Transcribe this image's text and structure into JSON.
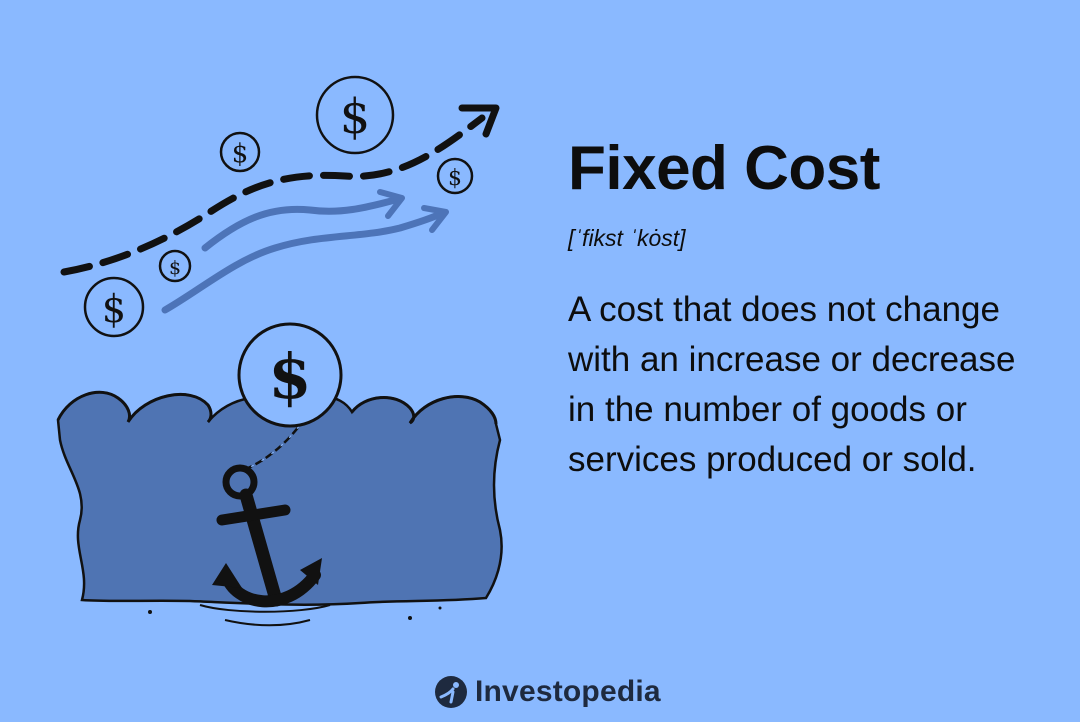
{
  "term": {
    "title": "Fixed Cost",
    "pronunciation": "[ˈfikst ˈkȯst]",
    "definition": "A cost that does not change with an increase or decrease in the number of goods or services produced or sold."
  },
  "illustration": {
    "coin_symbol": "$",
    "icon": "anchor-chained-to-coin-icon"
  },
  "brand": {
    "name": "Investopedia",
    "icon": "investopedia-logo-icon"
  },
  "colors": {
    "background": "#8ab9ff",
    "water": "#4f74b3",
    "arrow_light": "#4d74b8",
    "ink": "#111111"
  }
}
